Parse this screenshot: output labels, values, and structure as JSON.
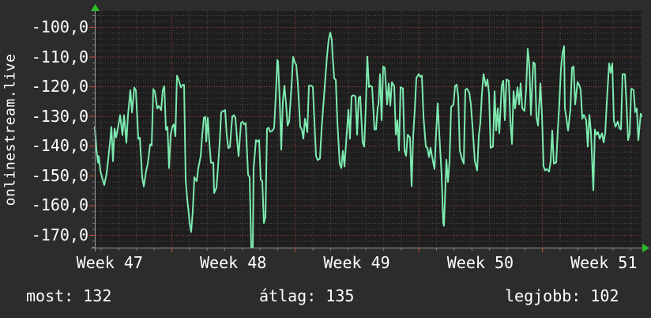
{
  "colors": {
    "page_bg": "#2c2c2c",
    "plot_bg": "#1e1e1e",
    "text": "#ffffff",
    "grid_minor": "#4b4b4b",
    "grid_major_red": "#a2493c",
    "tick_red": "#c0503c",
    "tick_gray": "#7a7a7a",
    "axis": "#9a9a9a",
    "arrow_green": "#2abf2a",
    "series_line": "#7deab0"
  },
  "chart_data": {
    "type": "line",
    "ylabel": "onlinestream.live",
    "legend_position": "none",
    "grid": "on",
    "y_unit": "negated ping (ms)",
    "ylim": [
      -175,
      -94
    ],
    "y_ticks": [
      {
        "value": -100,
        "label": "-100,0"
      },
      {
        "value": -110,
        "label": "-110,0"
      },
      {
        "value": -120,
        "label": "-120,0"
      },
      {
        "value": -130,
        "label": "-130,0"
      },
      {
        "value": -140,
        "label": "-140,0"
      },
      {
        "value": -150,
        "label": "-150,0"
      },
      {
        "value": -160,
        "label": "-160,0"
      },
      {
        "value": -170,
        "label": "-170,0"
      }
    ],
    "x_ticks": [
      "Week 47",
      "Week 48",
      "Week 49",
      "Week 50",
      "Week 51"
    ],
    "points": [
      [
        120,
        -133.7
      ],
      [
        122,
        -141
      ],
      [
        124,
        -145.7
      ],
      [
        125,
        -143.5
      ],
      [
        127,
        -148.4
      ],
      [
        130,
        -151.5
      ],
      [
        132,
        -153.2
      ],
      [
        135,
        -149.2
      ],
      [
        137,
        -144.4
      ],
      [
        139,
        -139.5
      ],
      [
        141,
        -133.7
      ],
      [
        143,
        -145.2
      ],
      [
        145,
        -134.2
      ],
      [
        147,
        -137.2
      ],
      [
        150,
        -132.9
      ],
      [
        152,
        -129.7
      ],
      [
        155,
        -136.4
      ],
      [
        157,
        -129.7
      ],
      [
        160,
        -139
      ],
      [
        162,
        -129.7
      ],
      [
        165,
        -121.3
      ],
      [
        167,
        -128.8
      ],
      [
        170,
        -120.4
      ],
      [
        172,
        -121.3
      ],
      [
        175,
        -137.7
      ],
      [
        177,
        -137.3
      ],
      [
        180,
        -150.6
      ],
      [
        182,
        -153.7
      ],
      [
        185,
        -148.4
      ],
      [
        187,
        -146.2
      ],
      [
        190,
        -139.5
      ],
      [
        192,
        -139.9
      ],
      [
        194,
        -120.9
      ],
      [
        196,
        -121.7
      ],
      [
        199,
        -127.5
      ],
      [
        201,
        -126.6
      ],
      [
        204,
        -128
      ],
      [
        206,
        -121.3
      ],
      [
        208,
        -120
      ],
      [
        210,
        -134.6
      ],
      [
        212,
        -133.7
      ],
      [
        214,
        -147.5
      ],
      [
        216,
        -136.4
      ],
      [
        218,
        -133.7
      ],
      [
        220,
        -132.8
      ],
      [
        222,
        -136.8
      ],
      [
        224,
        -116.4
      ],
      [
        226,
        -117.8
      ],
      [
        229,
        -120.4
      ],
      [
        231,
        -119.5
      ],
      [
        233,
        -119.5
      ],
      [
        235,
        -151.4
      ],
      [
        237,
        -158
      ],
      [
        239,
        -163
      ],
      [
        240,
        -166
      ],
      [
        242,
        -169
      ],
      [
        244,
        -162
      ],
      [
        246,
        -150.6
      ],
      [
        249,
        -151.9
      ],
      [
        251,
        -147.5
      ],
      [
        254,
        -143.5
      ],
      [
        256,
        -136.4
      ],
      [
        258,
        -130.6
      ],
      [
        260,
        -130.2
      ],
      [
        261,
        -138.6
      ],
      [
        263,
        -130.6
      ],
      [
        265,
        -139
      ],
      [
        267,
        -145.7
      ],
      [
        270,
        -145.7
      ],
      [
        271,
        -155.9
      ],
      [
        274,
        -154.1
      ],
      [
        276,
        -147
      ],
      [
        278,
        -139
      ],
      [
        280,
        -128.8
      ],
      [
        282,
        -128.4
      ],
      [
        285,
        -128
      ],
      [
        287,
        -136.4
      ],
      [
        289,
        -140.8
      ],
      [
        291,
        -140.4
      ],
      [
        294,
        -130.2
      ],
      [
        296,
        -129.7
      ],
      [
        298,
        -130.6
      ],
      [
        300,
        -137.7
      ],
      [
        302,
        -143.5
      ],
      [
        305,
        -132.4
      ],
      [
        307,
        -131.9
      ],
      [
        309,
        -132.8
      ],
      [
        311,
        -132.4
      ],
      [
        314,
        -149.7
      ],
      [
        316,
        -150.6
      ],
      [
        318,
        -174.5
      ],
      [
        320,
        -174.5
      ],
      [
        321,
        -147.5
      ],
      [
        324,
        -138.1
      ],
      [
        326,
        -138.6
      ],
      [
        328,
        -138.1
      ],
      [
        330,
        -151.4
      ],
      [
        332,
        -151.9
      ],
      [
        334,
        -166
      ],
      [
        336,
        -163.9
      ],
      [
        338,
        -134.3
      ],
      [
        340,
        -133.9
      ],
      [
        342,
        -135.3
      ],
      [
        345,
        -134.9
      ],
      [
        347,
        -133.9
      ],
      [
        349,
        -123.6
      ],
      [
        351,
        -111.1
      ],
      [
        352,
        -111.6
      ],
      [
        354,
        -124.4
      ],
      [
        356,
        -141.3
      ],
      [
        358,
        -125
      ],
      [
        360,
        -119.8
      ],
      [
        362,
        -125.6
      ],
      [
        364,
        -133.2
      ],
      [
        366,
        -131.9
      ],
      [
        369,
        -119.8
      ],
      [
        371,
        -110.1
      ],
      [
        373,
        -111.9
      ],
      [
        375,
        -112.8
      ],
      [
        377,
        -119
      ],
      [
        380,
        -133.6
      ],
      [
        382,
        -134.5
      ],
      [
        384,
        -137.6
      ],
      [
        386,
        -130.9
      ],
      [
        389,
        -135.4
      ],
      [
        391,
        -119.8
      ],
      [
        394,
        -119.8
      ],
      [
        396,
        -120.2
      ],
      [
        398,
        -131.9
      ],
      [
        400,
        -143.4
      ],
      [
        402,
        -144.8
      ],
      [
        405,
        -144.3
      ],
      [
        407,
        -134.5
      ],
      [
        409,
        -127.4
      ],
      [
        411,
        -120.2
      ],
      [
        414,
        -109.6
      ],
      [
        416,
        -104.3
      ],
      [
        418,
        -101.9
      ],
      [
        420,
        -104.4
      ],
      [
        421,
        -109.8
      ],
      [
        423,
        -117.3
      ],
      [
        425,
        -117.8
      ],
      [
        427,
        -131.9
      ],
      [
        430,
        -146.1
      ],
      [
        432,
        -147.5
      ],
      [
        434,
        -141.7
      ],
      [
        436,
        -147
      ],
      [
        439,
        -135.4
      ],
      [
        441,
        -127.9
      ],
      [
        443,
        -137.6
      ],
      [
        445,
        -123.4
      ],
      [
        447,
        -123
      ],
      [
        450,
        -123.4
      ],
      [
        452,
        -136.3
      ],
      [
        454,
        -123.9
      ],
      [
        456,
        -123.4
      ],
      [
        459,
        -138.9
      ],
      [
        461,
        -140.3
      ],
      [
        463,
        -127
      ],
      [
        465,
        -110
      ],
      [
        467,
        -120.2
      ],
      [
        469,
        -119.8
      ],
      [
        471,
        -120.2
      ],
      [
        474,
        -134.5
      ],
      [
        476,
        -134.5
      ],
      [
        478,
        -127.4
      ],
      [
        479,
        -126.1
      ],
      [
        481,
        -115.9
      ],
      [
        483,
        -131.4
      ],
      [
        485,
        -113.3
      ],
      [
        487,
        -113.7
      ],
      [
        490,
        -126.1
      ],
      [
        492,
        -119
      ],
      [
        494,
        -126.5
      ],
      [
        496,
        -118.6
      ],
      [
        499,
        -119.9
      ],
      [
        501,
        -136.3
      ],
      [
        503,
        -131.4
      ],
      [
        505,
        -141.6
      ],
      [
        507,
        -120.3
      ],
      [
        510,
        -120.7
      ],
      [
        512,
        -141.6
      ],
      [
        514,
        -143.4
      ],
      [
        516,
        -136.3
      ],
      [
        519,
        -137.2
      ],
      [
        521,
        -153.6
      ],
      [
        523,
        -136.7
      ],
      [
        525,
        -127.9
      ],
      [
        527,
        -117.2
      ],
      [
        530,
        -115.9
      ],
      [
        532,
        -116.8
      ],
      [
        534,
        -116.4
      ],
      [
        536,
        -130.1
      ],
      [
        539,
        -140.3
      ],
      [
        541,
        -140.7
      ],
      [
        543,
        -143.8
      ],
      [
        545,
        -140.7
      ],
      [
        547,
        -143.8
      ],
      [
        550,
        -147.8
      ],
      [
        552,
        -135.8
      ],
      [
        554,
        -125.7
      ],
      [
        556,
        -135.8
      ],
      [
        559,
        -150
      ],
      [
        561,
        -166
      ],
      [
        562,
        -166.9
      ],
      [
        565,
        -144.7
      ],
      [
        567,
        -152.2
      ],
      [
        569,
        -145.2
      ],
      [
        571,
        -127
      ],
      [
        574,
        -126.1
      ],
      [
        576,
        -119.9
      ],
      [
        578,
        -119.4
      ],
      [
        580,
        -123.4
      ],
      [
        582,
        -141.6
      ],
      [
        585,
        -144.7
      ],
      [
        587,
        -146
      ],
      [
        589,
        -121.2
      ],
      [
        591,
        -120.8
      ],
      [
        594,
        -122.1
      ],
      [
        596,
        -126.1
      ],
      [
        598,
        -133.2
      ],
      [
        601,
        -145.2
      ],
      [
        604,
        -148.3
      ],
      [
        606,
        -136.7
      ],
      [
        608,
        -132.3
      ],
      [
        610,
        -122.5
      ],
      [
        612,
        -115.9
      ],
      [
        615,
        -119.9
      ],
      [
        617,
        -117.7
      ],
      [
        619,
        -122.5
      ],
      [
        621,
        -140.7
      ],
      [
        624,
        -140.3
      ],
      [
        626,
        -121.6
      ],
      [
        628,
        -134.9
      ],
      [
        630,
        -127.4
      ],
      [
        632,
        -135.8
      ],
      [
        635,
        -119.9
      ],
      [
        637,
        -118.1
      ],
      [
        639,
        -131.4
      ],
      [
        641,
        -117.7
      ],
      [
        644,
        -118.1
      ],
      [
        646,
        -131.8
      ],
      [
        648,
        -139.4
      ],
      [
        650,
        -121.6
      ],
      [
        652,
        -127.4
      ],
      [
        655,
        -120.3
      ],
      [
        657,
        -126.1
      ],
      [
        659,
        -119
      ],
      [
        661,
        -127.4
      ],
      [
        664,
        -128.3
      ],
      [
        666,
        -120.8
      ],
      [
        668,
        -107.4
      ],
      [
        670,
        -112.8
      ],
      [
        672,
        -129.6
      ],
      [
        675,
        -111.9
      ],
      [
        677,
        -112.4
      ],
      [
        679,
        -130.5
      ],
      [
        681,
        -133.2
      ],
      [
        684,
        -119
      ],
      [
        686,
        -129.6
      ],
      [
        688,
        -146.9
      ],
      [
        690,
        -148.3
      ],
      [
        692,
        -147.8
      ],
      [
        695,
        -148.7
      ],
      [
        697,
        -145.2
      ],
      [
        699,
        -134.9
      ],
      [
        701,
        -146
      ],
      [
        704,
        -145.6
      ],
      [
        706,
        -134.9
      ],
      [
        708,
        -125.6
      ],
      [
        710,
        -114.2
      ],
      [
        712,
        -108.8
      ],
      [
        714,
        -106.5
      ],
      [
        715,
        -127.4
      ],
      [
        717,
        -130.9
      ],
      [
        719,
        -134.9
      ],
      [
        722,
        -127.9
      ],
      [
        724,
        -113.7
      ],
      [
        726,
        -113.3
      ],
      [
        728,
        -126.1
      ],
      [
        731,
        -118.6
      ],
      [
        733,
        -119.4
      ],
      [
        735,
        -121.2
      ],
      [
        737,
        -130.9
      ],
      [
        739,
        -129.6
      ],
      [
        742,
        -131.4
      ],
      [
        744,
        -140.3
      ],
      [
        746,
        -129.6
      ],
      [
        748,
        -135.4
      ],
      [
        751,
        -155
      ],
      [
        753,
        -134.5
      ],
      [
        755,
        -136.3
      ],
      [
        757,
        -135.4
      ],
      [
        759,
        -137.6
      ],
      [
        762,
        -135.8
      ],
      [
        764,
        -138.9
      ],
      [
        766,
        -135.8
      ],
      [
        768,
        -125.6
      ],
      [
        771,
        -112.3
      ],
      [
        773,
        -115.4
      ],
      [
        775,
        -112.3
      ],
      [
        777,
        -131.4
      ],
      [
        779,
        -133.6
      ],
      [
        782,
        -131.8
      ],
      [
        784,
        -134.1
      ],
      [
        786,
        -134.5
      ],
      [
        788,
        -115.9
      ],
      [
        791,
        -115.9
      ],
      [
        793,
        -126.1
      ],
      [
        795,
        -138.1
      ],
      [
        797,
        -135.8
      ],
      [
        799,
        -120.8
      ],
      [
        802,
        -121.2
      ],
      [
        804,
        -128.7
      ],
      [
        806,
        -127.4
      ],
      [
        808,
        -138.1
      ],
      [
        811,
        -129.2
      ],
      [
        812,
        -130.1
      ]
    ]
  },
  "footer": {
    "stats": [
      {
        "id": "most",
        "label": "most",
        "value": "132"
      },
      {
        "id": "atlag",
        "label": "átlag",
        "value": "135"
      },
      {
        "id": "legjobb",
        "label": "legjobb",
        "value": "102"
      }
    ]
  }
}
